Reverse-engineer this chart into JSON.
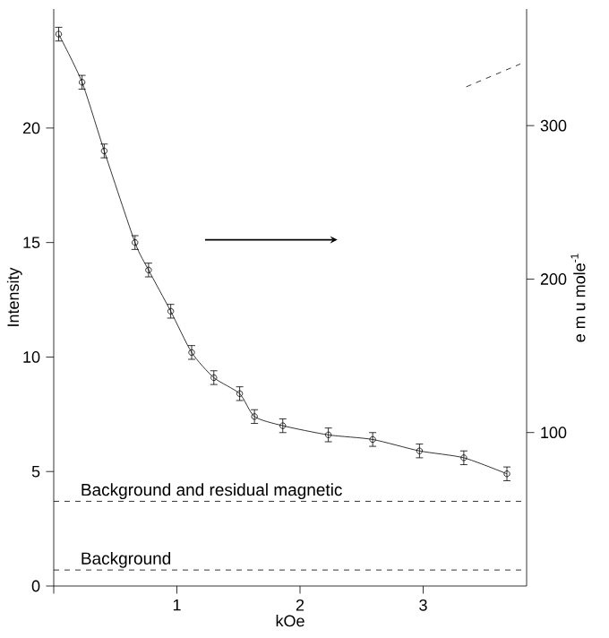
{
  "chart_data": {
    "type": "line",
    "xlabel": "kOe",
    "ylabel": "Intensity",
    "y2label": "e m u  mole$^{-1}$",
    "xlim": [
      0,
      3.84
    ],
    "ylim": [
      0,
      25.2
    ],
    "y2lim": [
      0,
      376
    ],
    "xticks": [
      {
        "value": 0,
        "label": null
      },
      1,
      2,
      3
    ],
    "yticks": [
      0,
      5,
      10,
      15,
      20
    ],
    "y2ticks": [
      100,
      200,
      300
    ],
    "marker": "circle",
    "line_style": "solid",
    "grid": false,
    "series": [
      {
        "x": [
          0.04,
          0.23,
          0.41,
          0.66,
          0.77,
          0.95,
          1.12,
          1.3,
          1.51,
          1.63,
          1.86,
          2.23,
          2.59,
          2.97,
          3.33,
          3.68
        ],
        "values": [
          24.1,
          22.0,
          19.0,
          15.0,
          13.8,
          12.0,
          10.2,
          9.1,
          8.4,
          7.4,
          7.0,
          6.6,
          6.4,
          5.9,
          5.6,
          4.9
        ],
        "errors": [
          0.3,
          0.3,
          0.3,
          0.3,
          0.3,
          0.3,
          0.3,
          0.3,
          0.3,
          0.3,
          0.3,
          0.3,
          0.3,
          0.3,
          0.3,
          0.3
        ],
        "color": "#000000"
      },
      {
        "x": [
          3.35,
          3.79
        ],
        "values": [
          21.8,
          22.8
        ],
        "marker": "none",
        "line_style": "dashed",
        "color": "#000000"
      }
    ],
    "ref_lines": [
      {
        "axis": "y",
        "value": 3.7,
        "label": "Background and residual magnetic",
        "line_style": "dashed",
        "color": "#000000"
      },
      {
        "axis": "y",
        "value": 0.7,
        "label": "Background",
        "line_style": "dashed",
        "color": "#000000"
      }
    ]
  }
}
